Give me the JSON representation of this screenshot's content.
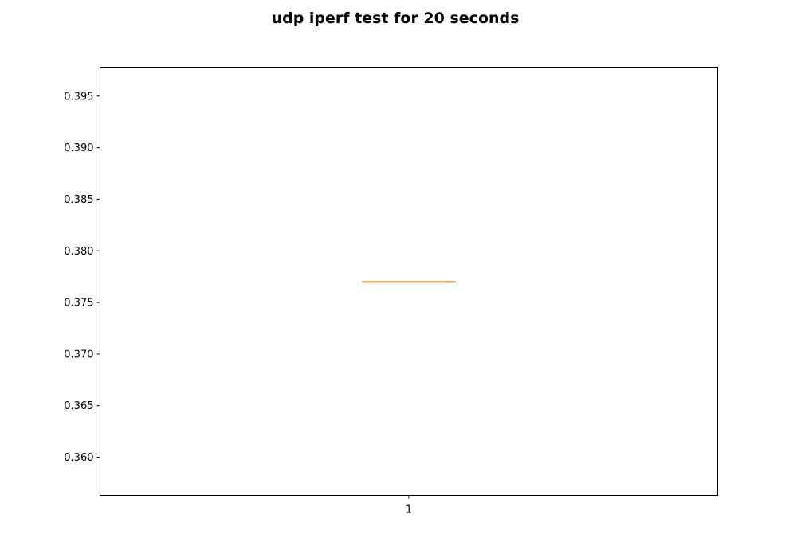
{
  "chart_data": {
    "type": "box",
    "title": "udp iperf test for 20 seconds",
    "xlabel": "",
    "ylabel": "",
    "categories": [
      "1"
    ],
    "ylim": [
      0.3563,
      0.3978
    ],
    "yticks": [
      0.36,
      0.365,
      0.37,
      0.375,
      0.38,
      0.385,
      0.39,
      0.395
    ],
    "ytick_labels": [
      "0.360",
      "0.365",
      "0.370",
      "0.375",
      "0.380",
      "0.385",
      "0.390",
      "0.395"
    ],
    "boxes": [
      {
        "category": "1",
        "min": 0.377,
        "q1": 0.377,
        "median": 0.377,
        "q3": 0.377,
        "max": 0.377
      }
    ],
    "grid": false,
    "colors": {
      "box": "#000000",
      "median": "#ff7f0e"
    }
  }
}
